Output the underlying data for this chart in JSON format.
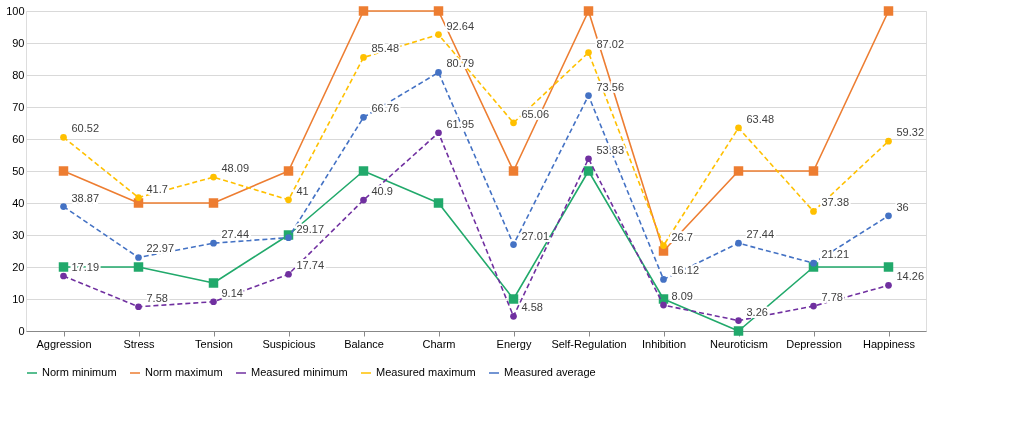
{
  "chart_data": {
    "type": "line",
    "categories": [
      "Aggression",
      "Stress",
      "Tension",
      "Suspicious",
      "Balance",
      "Charm",
      "Energy",
      "Self-Regulation",
      "Inhibition",
      "Neuroticism",
      "Depression",
      "Happiness"
    ],
    "series": [
      {
        "name": "Norm minimum",
        "color": "#21a96b",
        "marker": "square",
        "line_style": "solid",
        "values": [
          20,
          20,
          15,
          30,
          50,
          40,
          10,
          50,
          10,
          0,
          20,
          20
        ]
      },
      {
        "name": "Norm maximum",
        "color": "#ed7d31",
        "marker": "square",
        "line_style": "solid",
        "values": [
          50,
          40,
          40,
          50,
          100,
          100,
          50,
          100,
          25,
          50,
          50,
          100
        ]
      },
      {
        "name": "Measured minimum",
        "color": "#7030a0",
        "marker": "circle",
        "line_style": "dashed",
        "values": [
          17.19,
          7.58,
          9.14,
          17.74,
          40.9,
          61.95,
          4.58,
          53.83,
          8.09,
          3.26,
          7.78,
          14.26
        ],
        "value_labels": [
          "17.19",
          "7.58",
          "9.14",
          "17.74",
          "40.9",
          "61.95",
          "4.58",
          "53.83",
          "8.09",
          "3.26",
          "7.78",
          "14.26"
        ]
      },
      {
        "name": "Measured maximum",
        "color": "#ffc000",
        "marker": "circle",
        "line_style": "dashed",
        "values": [
          60.52,
          41.7,
          48.09,
          41,
          85.48,
          92.64,
          65.06,
          87.02,
          26.7,
          63.48,
          37.38,
          59.32
        ],
        "value_labels": [
          "60.52",
          "41.7",
          "48.09",
          "41",
          "85.48",
          "92.64",
          "65.06",
          "87.02",
          "26.7",
          "63.48",
          "37.38",
          "59.32"
        ]
      },
      {
        "name": "Measured average",
        "color": "#4472c4",
        "marker": "circle",
        "line_style": "dashed",
        "values": [
          38.87,
          22.97,
          27.44,
          29.17,
          66.76,
          80.79,
          27.01,
          73.56,
          16.12,
          27.44,
          21.21,
          36
        ],
        "value_labels": [
          "38.87",
          "22.97",
          "27.44",
          "29.17",
          "66.76",
          "80.79",
          "27.01",
          "73.56",
          "16.12",
          "27.44",
          "21.21",
          "36"
        ]
      }
    ],
    "ylim": [
      0,
      100
    ],
    "yticks": [
      0,
      10,
      20,
      30,
      40,
      50,
      60,
      70,
      80,
      90,
      100
    ],
    "grid": "y",
    "legend": "bottom"
  }
}
